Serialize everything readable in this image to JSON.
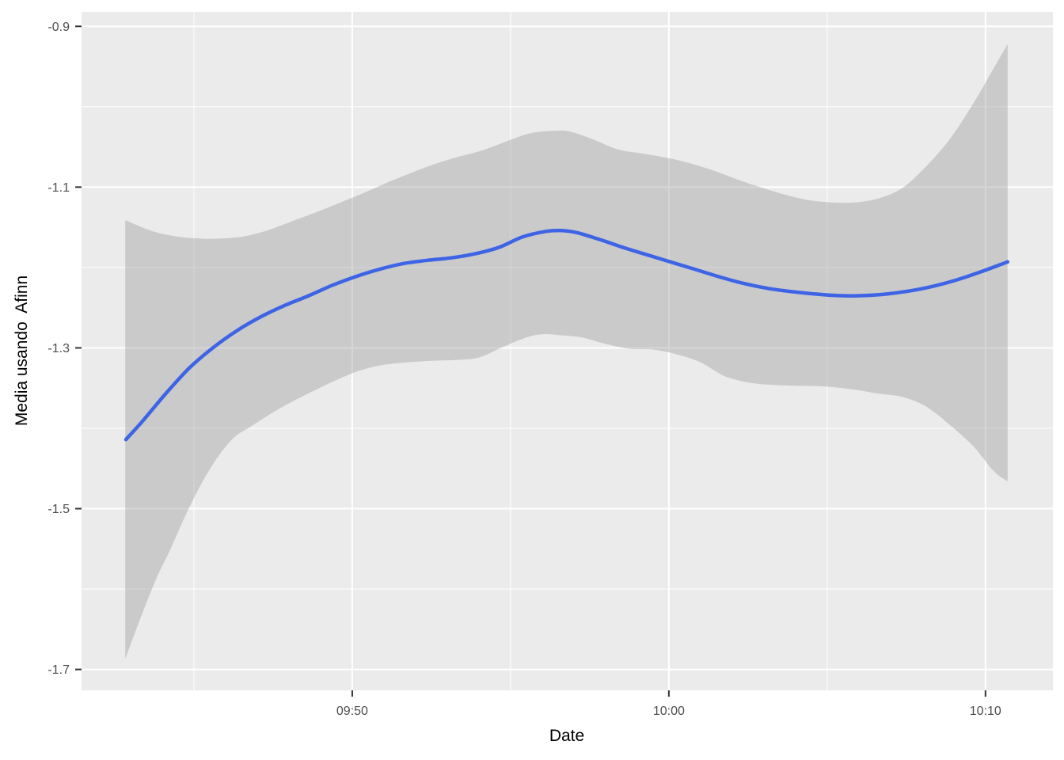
{
  "figure": {
    "background": "#FFFFFF",
    "panel_background": "#EBEBEB",
    "axis_text_color": "#4D4D4D",
    "axis_title_color": "#000000",
    "tick_mark_color": "#333333"
  },
  "chart_data": {
    "type": "line",
    "subtype": "smooth-with-confidence-ribbon",
    "title": "",
    "xlabel": "Date",
    "ylabel": "Media usando  Afinn",
    "legend_position": "none",
    "grid": {
      "major_color": "#FFFFFF",
      "minor_color": "#FFFFFF",
      "major_width": 2,
      "minor_width": 1
    },
    "panel_bg": "#EBEBEB",
    "x_axis": {
      "unit": "time (hh:mm), minutes after midnight",
      "domain_minutes": [
        581.45,
        612.13
      ],
      "major_ticks": [
        {
          "minutes": 590,
          "label": "09:50"
        },
        {
          "minutes": 600,
          "label": "10:00"
        },
        {
          "minutes": 610,
          "label": "10:10"
        }
      ],
      "minor_ticks_minutes": [
        585,
        595,
        605
      ]
    },
    "y_axis": {
      "domain": [
        -0.882,
        -1.726
      ],
      "major_ticks": [
        {
          "value": -0.9,
          "label": "-0.9"
        },
        {
          "value": -1.1,
          "label": "-1.1"
        },
        {
          "value": -1.3,
          "label": "-1.3"
        },
        {
          "value": -1.5,
          "label": "-1.5"
        },
        {
          "value": -1.7,
          "label": "-1.7"
        }
      ],
      "minor_ticks_values": [
        -1.0,
        -1.2,
        -1.4,
        -1.6
      ]
    },
    "series": {
      "smooth": {
        "name": "smoothed mean sentiment (Afinn)",
        "color": "#3E64E6",
        "width": 4.5,
        "points": [
          [
            582.85,
            -1.414
          ],
          [
            583.38,
            -1.391
          ],
          [
            584.13,
            -1.356
          ],
          [
            584.88,
            -1.324
          ],
          [
            585.63,
            -1.299
          ],
          [
            586.38,
            -1.278
          ],
          [
            587.13,
            -1.261
          ],
          [
            587.88,
            -1.247
          ],
          [
            588.63,
            -1.235
          ],
          [
            589.38,
            -1.222
          ],
          [
            590.13,
            -1.211
          ],
          [
            590.88,
            -1.202
          ],
          [
            591.63,
            -1.195
          ],
          [
            592.38,
            -1.191
          ],
          [
            593.13,
            -1.188
          ],
          [
            593.88,
            -1.183
          ],
          [
            594.63,
            -1.175
          ],
          [
            595.38,
            -1.162
          ],
          [
            596.13,
            -1.155
          ],
          [
            596.63,
            -1.154
          ],
          [
            597.13,
            -1.157
          ],
          [
            597.88,
            -1.166
          ],
          [
            598.63,
            -1.176
          ],
          [
            599.38,
            -1.185
          ],
          [
            600.13,
            -1.194
          ],
          [
            600.88,
            -1.203
          ],
          [
            601.63,
            -1.212
          ],
          [
            602.38,
            -1.22
          ],
          [
            603.13,
            -1.226
          ],
          [
            603.88,
            -1.23
          ],
          [
            604.63,
            -1.233
          ],
          [
            605.38,
            -1.235
          ],
          [
            606.13,
            -1.235
          ],
          [
            606.88,
            -1.233
          ],
          [
            607.63,
            -1.229
          ],
          [
            608.38,
            -1.223
          ],
          [
            609.13,
            -1.215
          ],
          [
            609.88,
            -1.205
          ],
          [
            610.7,
            -1.193
          ]
        ]
      },
      "ribbon": {
        "name": "confidence interval",
        "fill": "#999999",
        "opacity": 0.4,
        "upper": [
          [
            582.83,
            -1.141
          ],
          [
            583.63,
            -1.154
          ],
          [
            584.38,
            -1.161
          ],
          [
            585.13,
            -1.164
          ],
          [
            585.88,
            -1.164
          ],
          [
            586.63,
            -1.161
          ],
          [
            587.38,
            -1.153
          ],
          [
            588.13,
            -1.142
          ],
          [
            588.88,
            -1.131
          ],
          [
            589.63,
            -1.119
          ],
          [
            590.38,
            -1.107
          ],
          [
            591.13,
            -1.094
          ],
          [
            591.88,
            -1.082
          ],
          [
            592.63,
            -1.071
          ],
          [
            593.38,
            -1.062
          ],
          [
            594.13,
            -1.054
          ],
          [
            594.88,
            -1.043
          ],
          [
            595.63,
            -1.033
          ],
          [
            596.38,
            -1.03
          ],
          [
            596.88,
            -1.031
          ],
          [
            597.63,
            -1.041
          ],
          [
            598.38,
            -1.053
          ],
          [
            599.13,
            -1.058
          ],
          [
            599.88,
            -1.063
          ],
          [
            600.63,
            -1.07
          ],
          [
            601.38,
            -1.079
          ],
          [
            602.13,
            -1.09
          ],
          [
            602.88,
            -1.1
          ],
          [
            603.63,
            -1.109
          ],
          [
            604.38,
            -1.116
          ],
          [
            605.13,
            -1.119
          ],
          [
            605.88,
            -1.119
          ],
          [
            606.63,
            -1.114
          ],
          [
            607.38,
            -1.101
          ],
          [
            608.13,
            -1.074
          ],
          [
            608.88,
            -1.04
          ],
          [
            609.63,
            -0.995
          ],
          [
            610.13,
            -0.961
          ],
          [
            610.7,
            -0.922
          ]
        ],
        "lower": [
          [
            582.83,
            -1.687
          ],
          [
            583.13,
            -1.655
          ],
          [
            583.5,
            -1.617
          ],
          [
            583.88,
            -1.581
          ],
          [
            584.25,
            -1.551
          ],
          [
            584.75,
            -1.507
          ],
          [
            585.25,
            -1.468
          ],
          [
            585.75,
            -1.436
          ],
          [
            586.25,
            -1.412
          ],
          [
            586.75,
            -1.399
          ],
          [
            587.38,
            -1.383
          ],
          [
            588.0,
            -1.369
          ],
          [
            588.75,
            -1.354
          ],
          [
            589.5,
            -1.34
          ],
          [
            590.25,
            -1.328
          ],
          [
            591.0,
            -1.321
          ],
          [
            591.75,
            -1.318
          ],
          [
            592.5,
            -1.316
          ],
          [
            593.25,
            -1.315
          ],
          [
            594.0,
            -1.312
          ],
          [
            594.75,
            -1.299
          ],
          [
            595.5,
            -1.287
          ],
          [
            596.0,
            -1.283
          ],
          [
            596.5,
            -1.284
          ],
          [
            597.25,
            -1.287
          ],
          [
            598.0,
            -1.295
          ],
          [
            598.75,
            -1.301
          ],
          [
            599.5,
            -1.302
          ],
          [
            600.25,
            -1.308
          ],
          [
            601.0,
            -1.318
          ],
          [
            601.75,
            -1.335
          ],
          [
            602.5,
            -1.343
          ],
          [
            603.25,
            -1.346
          ],
          [
            604.0,
            -1.347
          ],
          [
            604.95,
            -1.348
          ],
          [
            605.88,
            -1.352
          ],
          [
            606.63,
            -1.357
          ],
          [
            607.38,
            -1.361
          ],
          [
            608.13,
            -1.373
          ],
          [
            608.88,
            -1.396
          ],
          [
            609.63,
            -1.423
          ],
          [
            610.25,
            -1.453
          ],
          [
            610.7,
            -1.466
          ]
        ]
      }
    }
  }
}
